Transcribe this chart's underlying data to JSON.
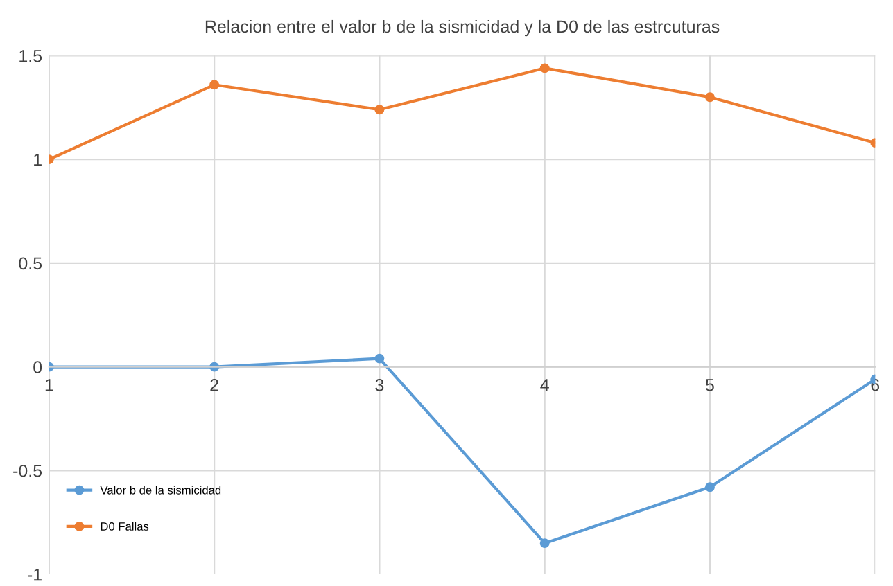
{
  "chart_data": {
    "type": "line",
    "title": "Relacion entre el valor b de la sismicidad y la D0 de las estrcuturas",
    "categories": [
      "1",
      "2",
      "3",
      "4",
      "5",
      "6"
    ],
    "series": [
      {
        "name": "Valor b de la sismicidad",
        "color": "#5b9bd5",
        "values": [
          0,
          0,
          0.04,
          -0.85,
          -0.58,
          -0.06
        ]
      },
      {
        "name": "D0 Fallas",
        "color": "#ed7d31",
        "values": [
          1.0,
          1.36,
          1.24,
          1.44,
          1.3,
          1.08
        ]
      }
    ],
    "ylim": [
      -1,
      1.5
    ],
    "yticks": [
      {
        "value": -1,
        "label": "-1"
      },
      {
        "value": -0.5,
        "label": "-0.5"
      },
      0,
      0.5,
      1,
      1.5
    ],
    "grid": true,
    "legend": "bottom left",
    "marker": "circle",
    "line_style": "solid"
  }
}
